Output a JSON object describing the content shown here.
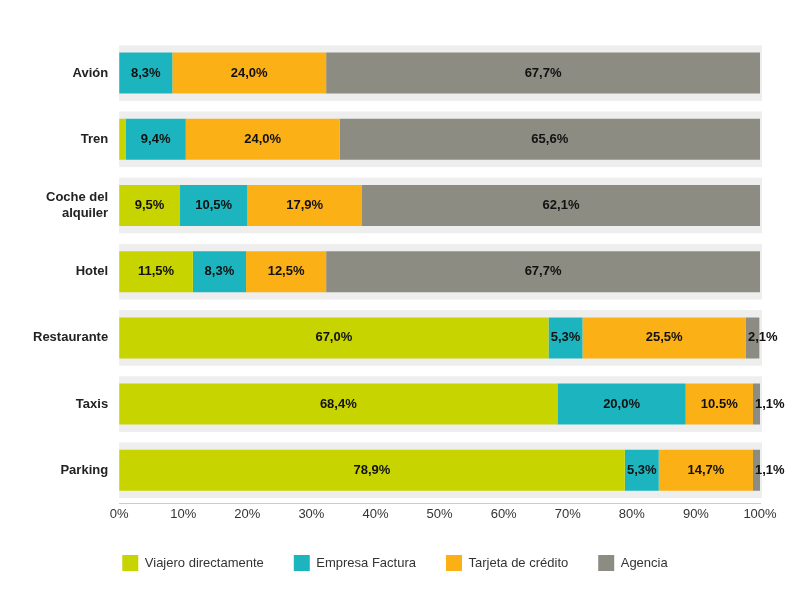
{
  "chart_data": {
    "type": "bar",
    "orientation": "horizontal",
    "stacked": true,
    "data_labels": true,
    "grid": false,
    "legend": "bottom",
    "categories": [
      "Avión",
      "Tren",
      "Coche del alquiler",
      "Hotel",
      "Restaurante",
      "Taxis",
      "Parking"
    ],
    "xlim": [
      0,
      100
    ],
    "xticks": [
      {
        "value": 0,
        "label": "0%"
      },
      {
        "value": 10,
        "label": "10%"
      },
      {
        "value": 20,
        "label": "20%"
      },
      {
        "value": 30,
        "label": "30%"
      },
      {
        "value": 40,
        "label": "40%"
      },
      {
        "value": 50,
        "label": "50%"
      },
      {
        "value": 60,
        "label": "60%"
      },
      {
        "value": 70,
        "label": "70%"
      },
      {
        "value": 80,
        "label": "80%"
      },
      {
        "value": 90,
        "label": "90%"
      },
      {
        "value": 100,
        "label": "100%"
      }
    ],
    "series": [
      {
        "name": "Viajero directamente",
        "color": "#c8d400",
        "values": [
          0,
          1.0,
          9.5,
          11.5,
          67.0,
          68.4,
          78.9
        ],
        "value_labels": [
          null,
          null,
          "9,5%",
          "11,5%",
          "67,0%",
          "68,4%",
          "78,9%"
        ]
      },
      {
        "name": "Empresa Factura",
        "color": "#1cb5bf",
        "values": [
          8.3,
          9.4,
          10.5,
          8.3,
          5.3,
          20.0,
          5.3
        ],
        "value_labels": [
          "8,3%",
          "9,4%",
          "10,5%",
          "8,3%",
          "5,3%",
          "20,0%",
          "5,3%"
        ]
      },
      {
        "name": "Tarjeta de crédito",
        "color": "#fbb016",
        "values": [
          24.0,
          24.0,
          17.9,
          12.5,
          25.5,
          10.5,
          14.7
        ],
        "value_labels": [
          "24,0%",
          "24,0%",
          "17,9%",
          "12,5%",
          "25,5%",
          "10.5%",
          "14,7%"
        ]
      },
      {
        "name": "Agencia",
        "color": "#8c8c82",
        "values": [
          67.7,
          65.6,
          62.1,
          67.7,
          2.1,
          1.1,
          1.1
        ],
        "value_labels": [
          "67,7%",
          "65,6%",
          "62,1%",
          "67,7%",
          "2,1%",
          "1,1%",
          "1,1%"
        ]
      }
    ]
  }
}
